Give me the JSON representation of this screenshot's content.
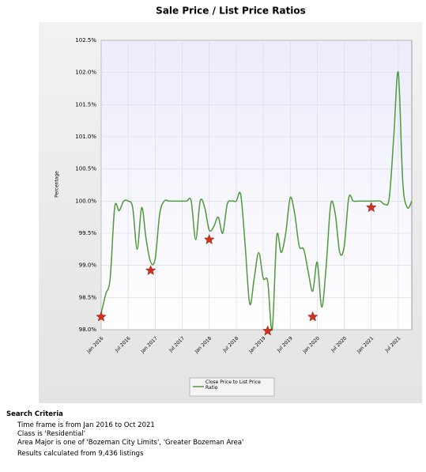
{
  "chart_data": {
    "type": "line",
    "title": "Sale Price / List Price Ratios",
    "ylabel": "Percentage",
    "series": [
      {
        "name": "Close Price to List Price Ratio",
        "color": "#4f9a3a",
        "x": [
          "2016-01",
          "2016-02",
          "2016-03",
          "2016-04",
          "2016-05",
          "2016-06",
          "2016-07",
          "2016-08",
          "2016-09",
          "2016-10",
          "2016-11",
          "2016-12",
          "2017-01",
          "2017-02",
          "2017-03",
          "2017-04",
          "2017-05",
          "2017-06",
          "2017-07",
          "2017-08",
          "2017-09",
          "2017-10",
          "2017-11",
          "2017-12",
          "2018-01",
          "2018-02",
          "2018-03",
          "2018-04",
          "2018-05",
          "2018-06",
          "2018-07",
          "2018-08",
          "2018-09",
          "2018-10",
          "2018-11",
          "2018-12",
          "2019-01",
          "2019-02",
          "2019-03",
          "2019-04",
          "2019-05",
          "2019-06",
          "2019-07",
          "2019-08",
          "2019-09",
          "2019-10",
          "2019-11",
          "2019-12",
          "2020-01",
          "2020-02",
          "2020-03",
          "2020-04",
          "2020-05",
          "2020-06",
          "2020-07",
          "2020-08",
          "2020-09",
          "2020-10",
          "2020-11",
          "2020-12",
          "2021-01",
          "2021-02",
          "2021-03",
          "2021-04",
          "2021-05",
          "2021-06",
          "2021-07",
          "2021-08",
          "2021-09",
          "2021-10"
        ],
        "values": [
          98.25,
          98.55,
          98.8,
          99.9,
          99.85,
          100.0,
          100.0,
          99.9,
          99.25,
          99.9,
          99.4,
          99.05,
          99.1,
          99.8,
          100.0,
          100.0,
          100.0,
          100.0,
          100.0,
          100.0,
          100.0,
          99.4,
          100.0,
          99.9,
          99.55,
          99.6,
          99.75,
          99.5,
          99.95,
          100.0,
          100.0,
          100.1,
          99.3,
          98.4,
          98.8,
          99.2,
          98.8,
          98.75,
          98.0,
          99.45,
          99.2,
          99.5,
          100.05,
          99.8,
          99.3,
          99.25,
          98.9,
          98.6,
          99.05,
          98.35,
          99.0,
          99.95,
          99.8,
          99.2,
          99.3,
          100.05,
          100.0,
          100.0,
          100.0,
          100.0,
          100.0,
          100.0,
          100.0,
          99.95,
          100.05,
          101.0,
          102.0,
          100.3,
          99.9,
          100.0
        ]
      },
      {
        "color": "#d0321d",
        "marker": "star",
        "x": [
          "2016-01",
          "2016-12",
          "2018-01",
          "2019-02",
          "2019-12",
          "2021-01"
        ],
        "values": [
          98.2,
          98.92,
          99.4,
          97.98,
          98.2,
          99.9
        ]
      }
    ],
    "xlim": [
      "2016-01",
      "2021-10"
    ],
    "xticks": [
      {
        "value": "2016-01",
        "label": "Jan 2016"
      },
      {
        "value": "2016-07",
        "label": "Jul 2016"
      },
      {
        "value": "2017-01",
        "label": "Jan 2017"
      },
      {
        "value": "2017-07",
        "label": "Jul 2017"
      },
      {
        "value": "2018-01",
        "label": "Jan 2018"
      },
      {
        "value": "2018-07",
        "label": "Jul 2018"
      },
      {
        "value": "2019-01",
        "label": "Jan 2019"
      },
      {
        "value": "2019-07",
        "label": "Jul 2019"
      },
      {
        "value": "2020-01",
        "label": "Jan 2020"
      },
      {
        "value": "2020-07",
        "label": "Jul 2020"
      },
      {
        "value": "2021-01",
        "label": "Jan 2021"
      },
      {
        "value": "2021-07",
        "label": "Jul 2021"
      }
    ],
    "ylim": [
      98.0,
      102.5
    ],
    "yticks": [
      {
        "value": 98.0,
        "label": "98.0%"
      },
      {
        "value": 98.5,
        "label": "98.5%"
      },
      {
        "value": 99.0,
        "label": "99.0%"
      },
      {
        "value": 99.5,
        "label": "99.5%"
      },
      {
        "value": 100.0,
        "label": "100.0%"
      },
      {
        "value": 100.5,
        "label": "100.5%"
      },
      {
        "value": 101.0,
        "label": "101.0%"
      },
      {
        "value": 101.5,
        "label": "101.5%"
      },
      {
        "value": 102.0,
        "label": "102.0%"
      },
      {
        "value": 102.5,
        "label": "102.5%"
      }
    ],
    "grid": true
  },
  "search_criteria": {
    "title": "Search Criteria",
    "lines": [
      "Time frame is from Jan 2016 to Oct 2021",
      "Class is 'Residential'",
      "Area Major is one of 'Bozeman City Limits', 'Greater Bozeman Area'",
      "Results calculated from 9,436 listings"
    ]
  }
}
